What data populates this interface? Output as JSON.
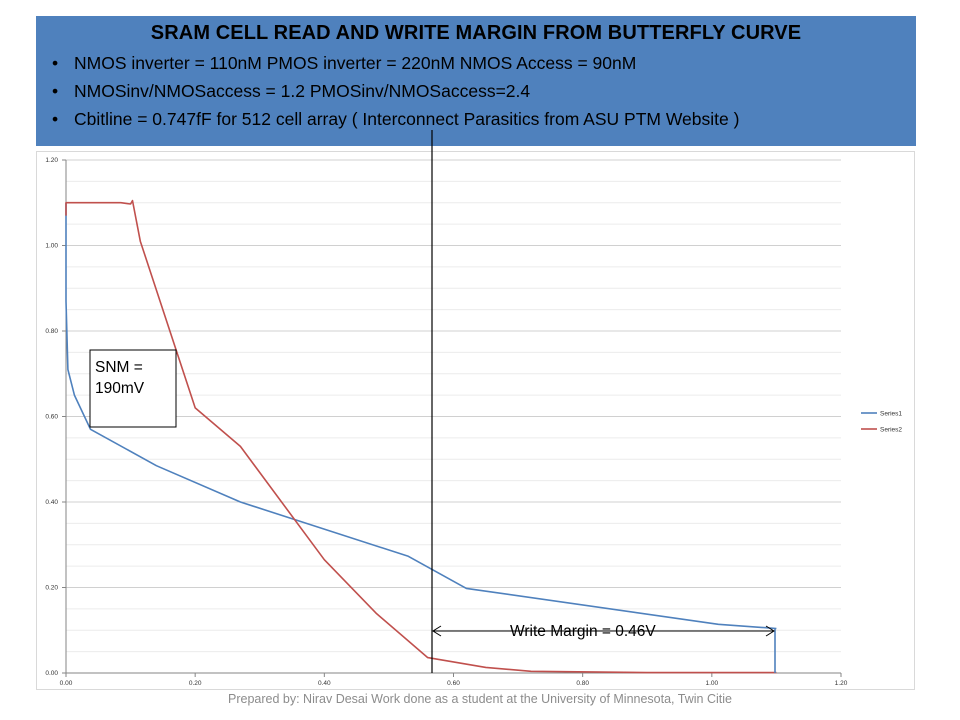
{
  "header": {
    "title": "SRAM CELL READ AND WRITE MARGIN FROM BUTTERFLY CURVE",
    "bullets": [
      "NMOS inverter = 110nM PMOS inverter = 220nM NMOS Access = 90nM",
      "NMOSinv/NMOSaccess = 1.2 PMOSinv/NMOSaccess=2.4",
      "Cbitline = 0.747fF for 512 cell array ( Interconnect Parasitics from ASU PTM Website )"
    ],
    "bullet_glyph": "•"
  },
  "annotations": {
    "snm_line1": "SNM =",
    "snm_line2": "190mV",
    "write_margin": "Write Margin = 0.46V"
  },
  "footer": {
    "text": "Prepared by: Nirav Desai Work done as a student at the University of Minnesota, Twin Citie"
  },
  "chart_data": {
    "type": "line",
    "title": "",
    "xlabel": "",
    "ylabel": "",
    "xlim": [
      0,
      1.2
    ],
    "ylim": [
      0,
      1.2
    ],
    "x_ticks": [
      "0.00",
      "0.20",
      "0.40",
      "0.60",
      "0.80",
      "1.00",
      "1.20"
    ],
    "y_ticks": [
      "0.00",
      "0.20",
      "0.40",
      "0.60",
      "0.80",
      "1.00",
      "1.20"
    ],
    "x_tick_values": [
      0,
      0.2,
      0.4,
      0.6,
      0.8,
      1.0,
      1.2
    ],
    "y_tick_values": [
      0,
      0.2,
      0.4,
      0.6,
      0.8,
      1.0,
      1.2
    ],
    "grid": "horizontal",
    "legend_position": "right",
    "series": [
      {
        "name": "Series1",
        "color": "#4f81bd",
        "x": [
          0.0,
          0.0,
          0.003,
          0.013,
          0.038,
          0.14,
          0.27,
          0.53,
          0.62,
          1.01,
          1.1
        ],
        "y": [
          1.1,
          0.87,
          0.71,
          0.65,
          0.57,
          0.485,
          0.4,
          0.273,
          0.198,
          0.114,
          0.104
        ]
      },
      {
        "name": "Series2",
        "color": "#c0504d",
        "x": [
          0.0,
          0.0,
          0.085,
          0.1,
          0.103,
          0.115,
          0.2,
          0.27,
          0.4,
          0.48,
          0.56,
          0.65,
          0.72,
          0.9,
          1.1
        ],
        "y": [
          1.07,
          1.1,
          1.1,
          1.097,
          1.105,
          1.01,
          0.62,
          0.53,
          0.265,
          0.14,
          0.036,
          0.013,
          0.004,
          0.001,
          0.001
        ]
      }
    ]
  }
}
